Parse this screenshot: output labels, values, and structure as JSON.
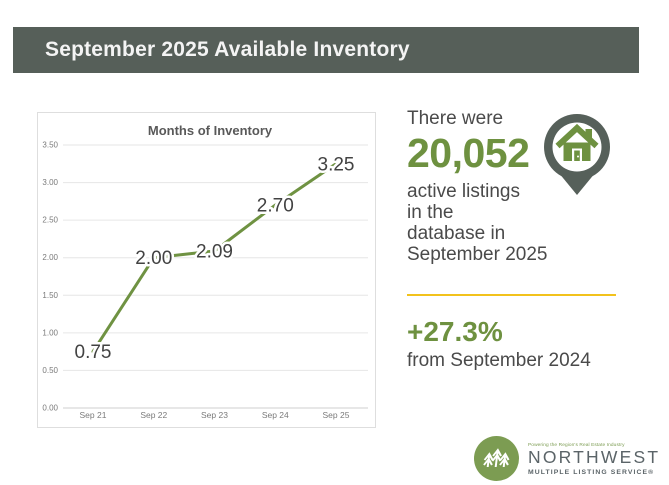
{
  "header": {
    "title": "September 2025 Available Inventory"
  },
  "chart_data": {
    "type": "line",
    "title": "Months of Inventory",
    "categories": [
      "Sep 21",
      "Sep 22",
      "Sep 23",
      "Sep 24",
      "Sep 25"
    ],
    "values": [
      0.75,
      2.0,
      2.09,
      2.7,
      3.25
    ],
    "data_labels": [
      "0.75",
      "2.00",
      "2.09",
      "2.70",
      "3.25"
    ],
    "y_ticks": [
      3.5,
      3.0,
      2.5,
      2.0,
      1.5,
      1.0,
      0.5,
      0.0
    ],
    "ylim": [
      0,
      3.5
    ],
    "grid": true,
    "legend": false,
    "line_color": "#6F9242"
  },
  "stats": {
    "intro": "There were",
    "count": "20,052",
    "desc_lines": [
      "active listings",
      "in the",
      "database in",
      "September 2025"
    ],
    "change": "+27.3%",
    "change_note": "from September 2024"
  },
  "logo": {
    "tagline": "Powering the Region's Real Estate Industry",
    "name": "NORTHWEST",
    "subtitle": "MULTIPLE LISTING SERVICE®"
  },
  "colors": {
    "green": "#6E9140",
    "header_bg": "#565F59",
    "yellow": "#F2C21C",
    "pin_gray": "#56605A",
    "logo_green": "#7C9C52"
  }
}
